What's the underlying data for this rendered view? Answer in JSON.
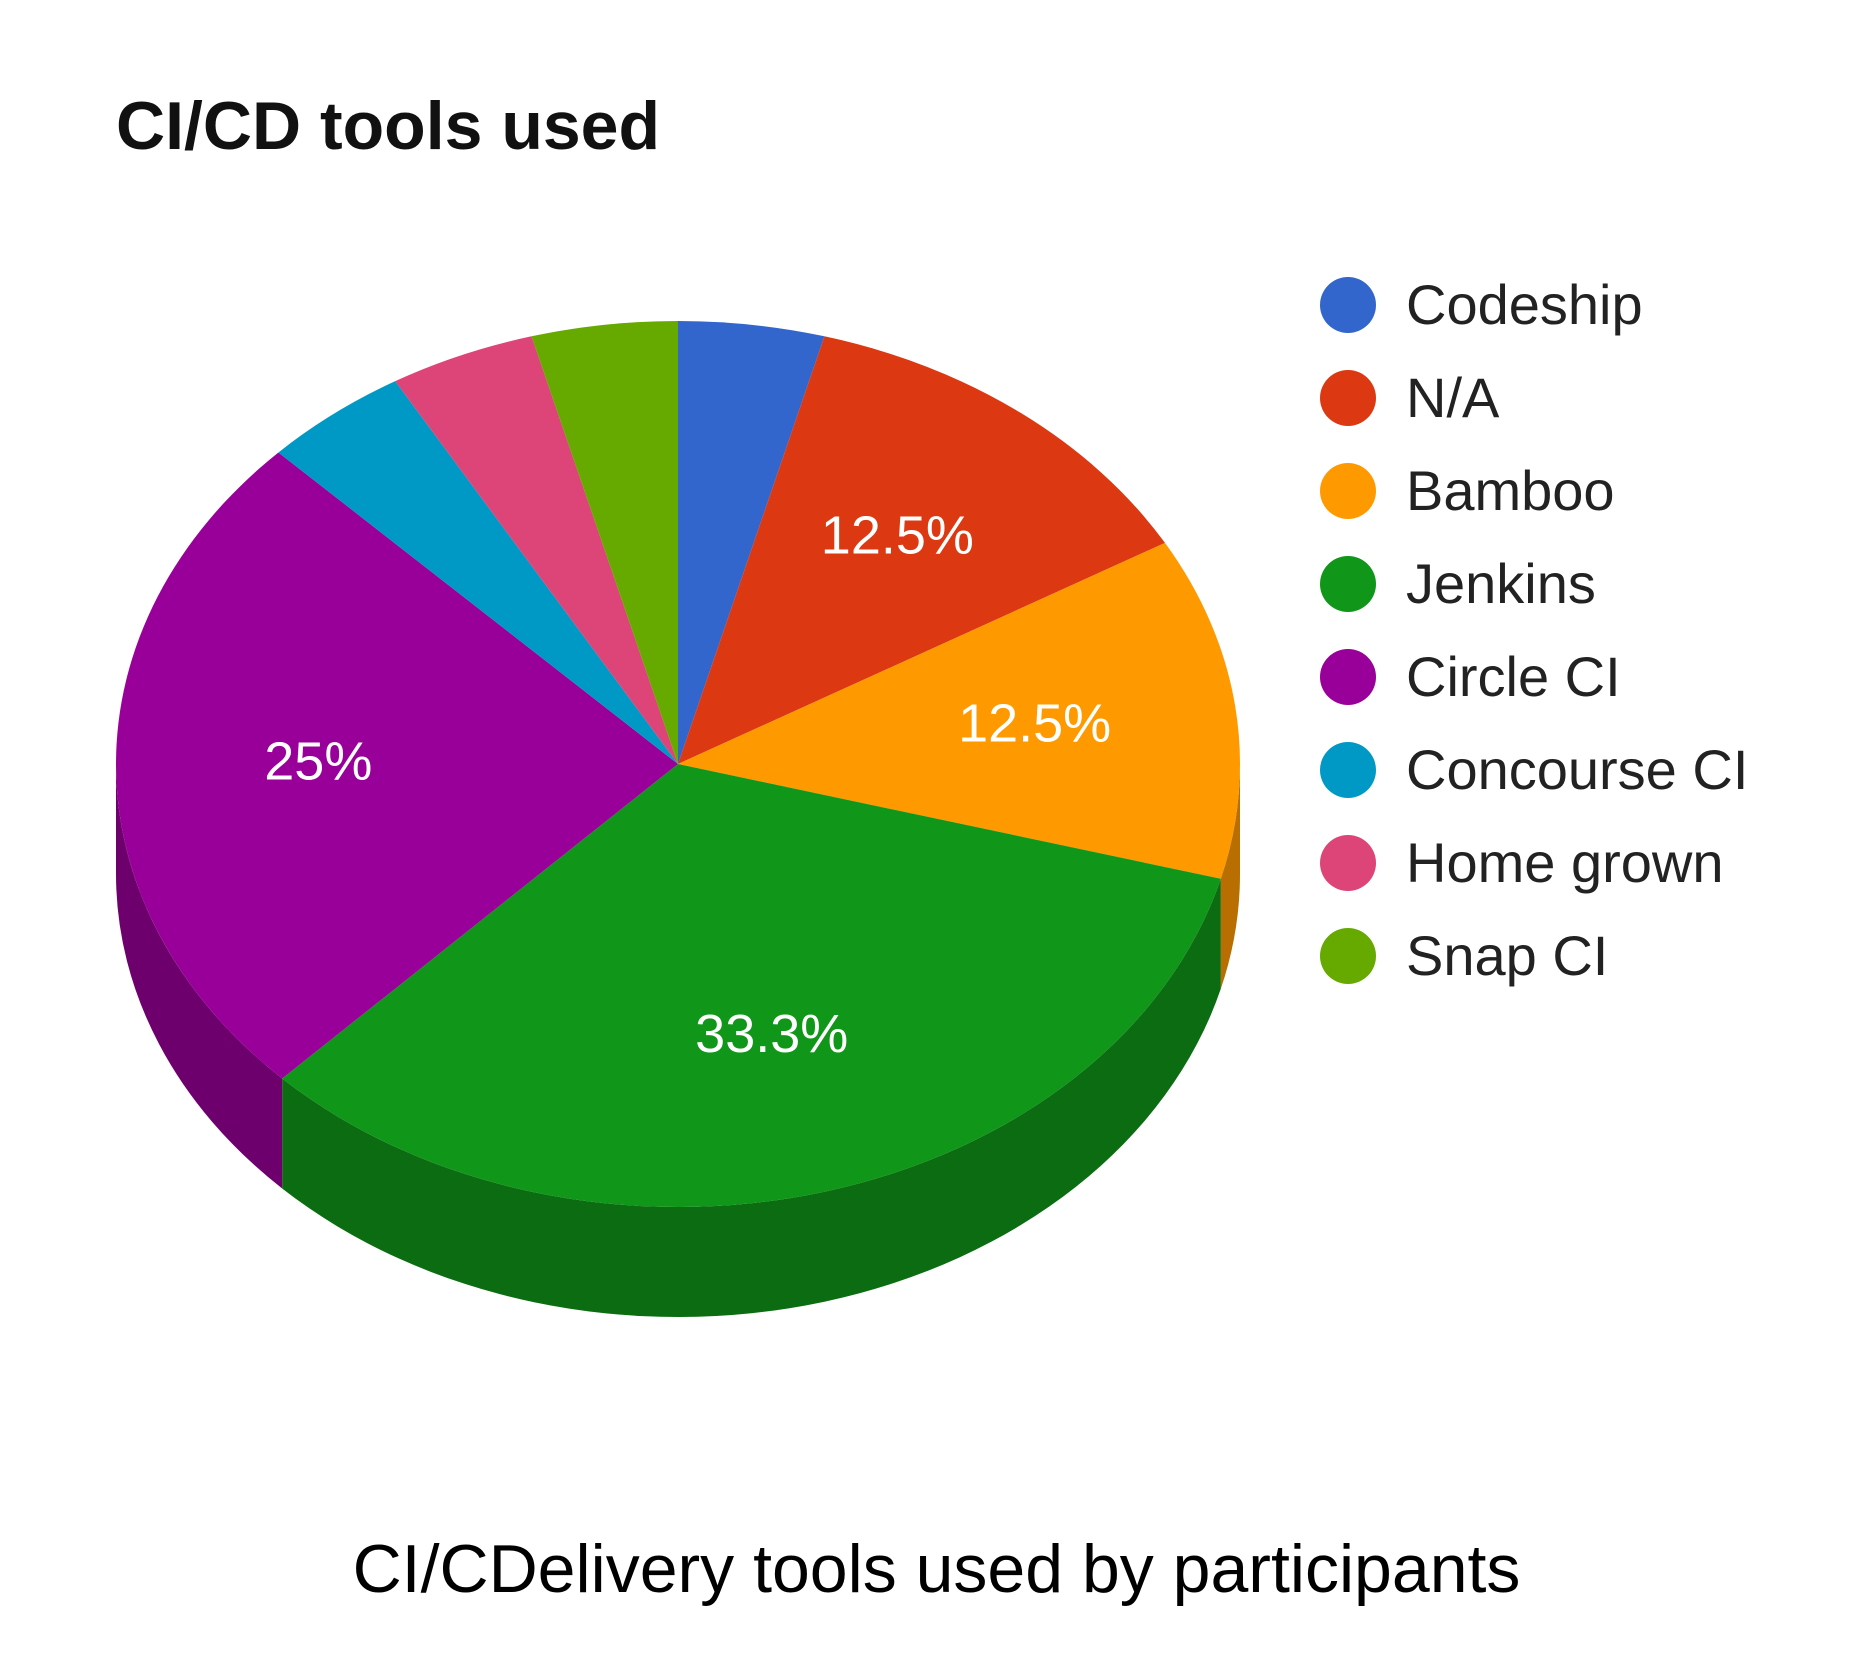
{
  "chart_data": {
    "type": "pie",
    "title": "CI/CD tools used",
    "categories": [
      "Codeship",
      "N/A",
      "Bamboo",
      "Jenkins",
      "Circle CI",
      "Concourse CI",
      "Home grown",
      "Snap CI"
    ],
    "values": [
      4.2,
      12.5,
      12.5,
      33.3,
      25,
      4.2,
      4.2,
      4.2
    ],
    "data_labels": [
      "",
      "12.5%",
      "12.5%",
      "33.3%",
      "25%",
      "",
      "",
      ""
    ],
    "colors": [
      "#3366cc",
      "#dc3912",
      "#ff9900",
      "#109618",
      "#990099",
      "#0099c6",
      "#dd4477",
      "#66aa00"
    ],
    "style": "3d",
    "legend_position": "right",
    "caption": "CI/CDelivery tools used by participants"
  }
}
